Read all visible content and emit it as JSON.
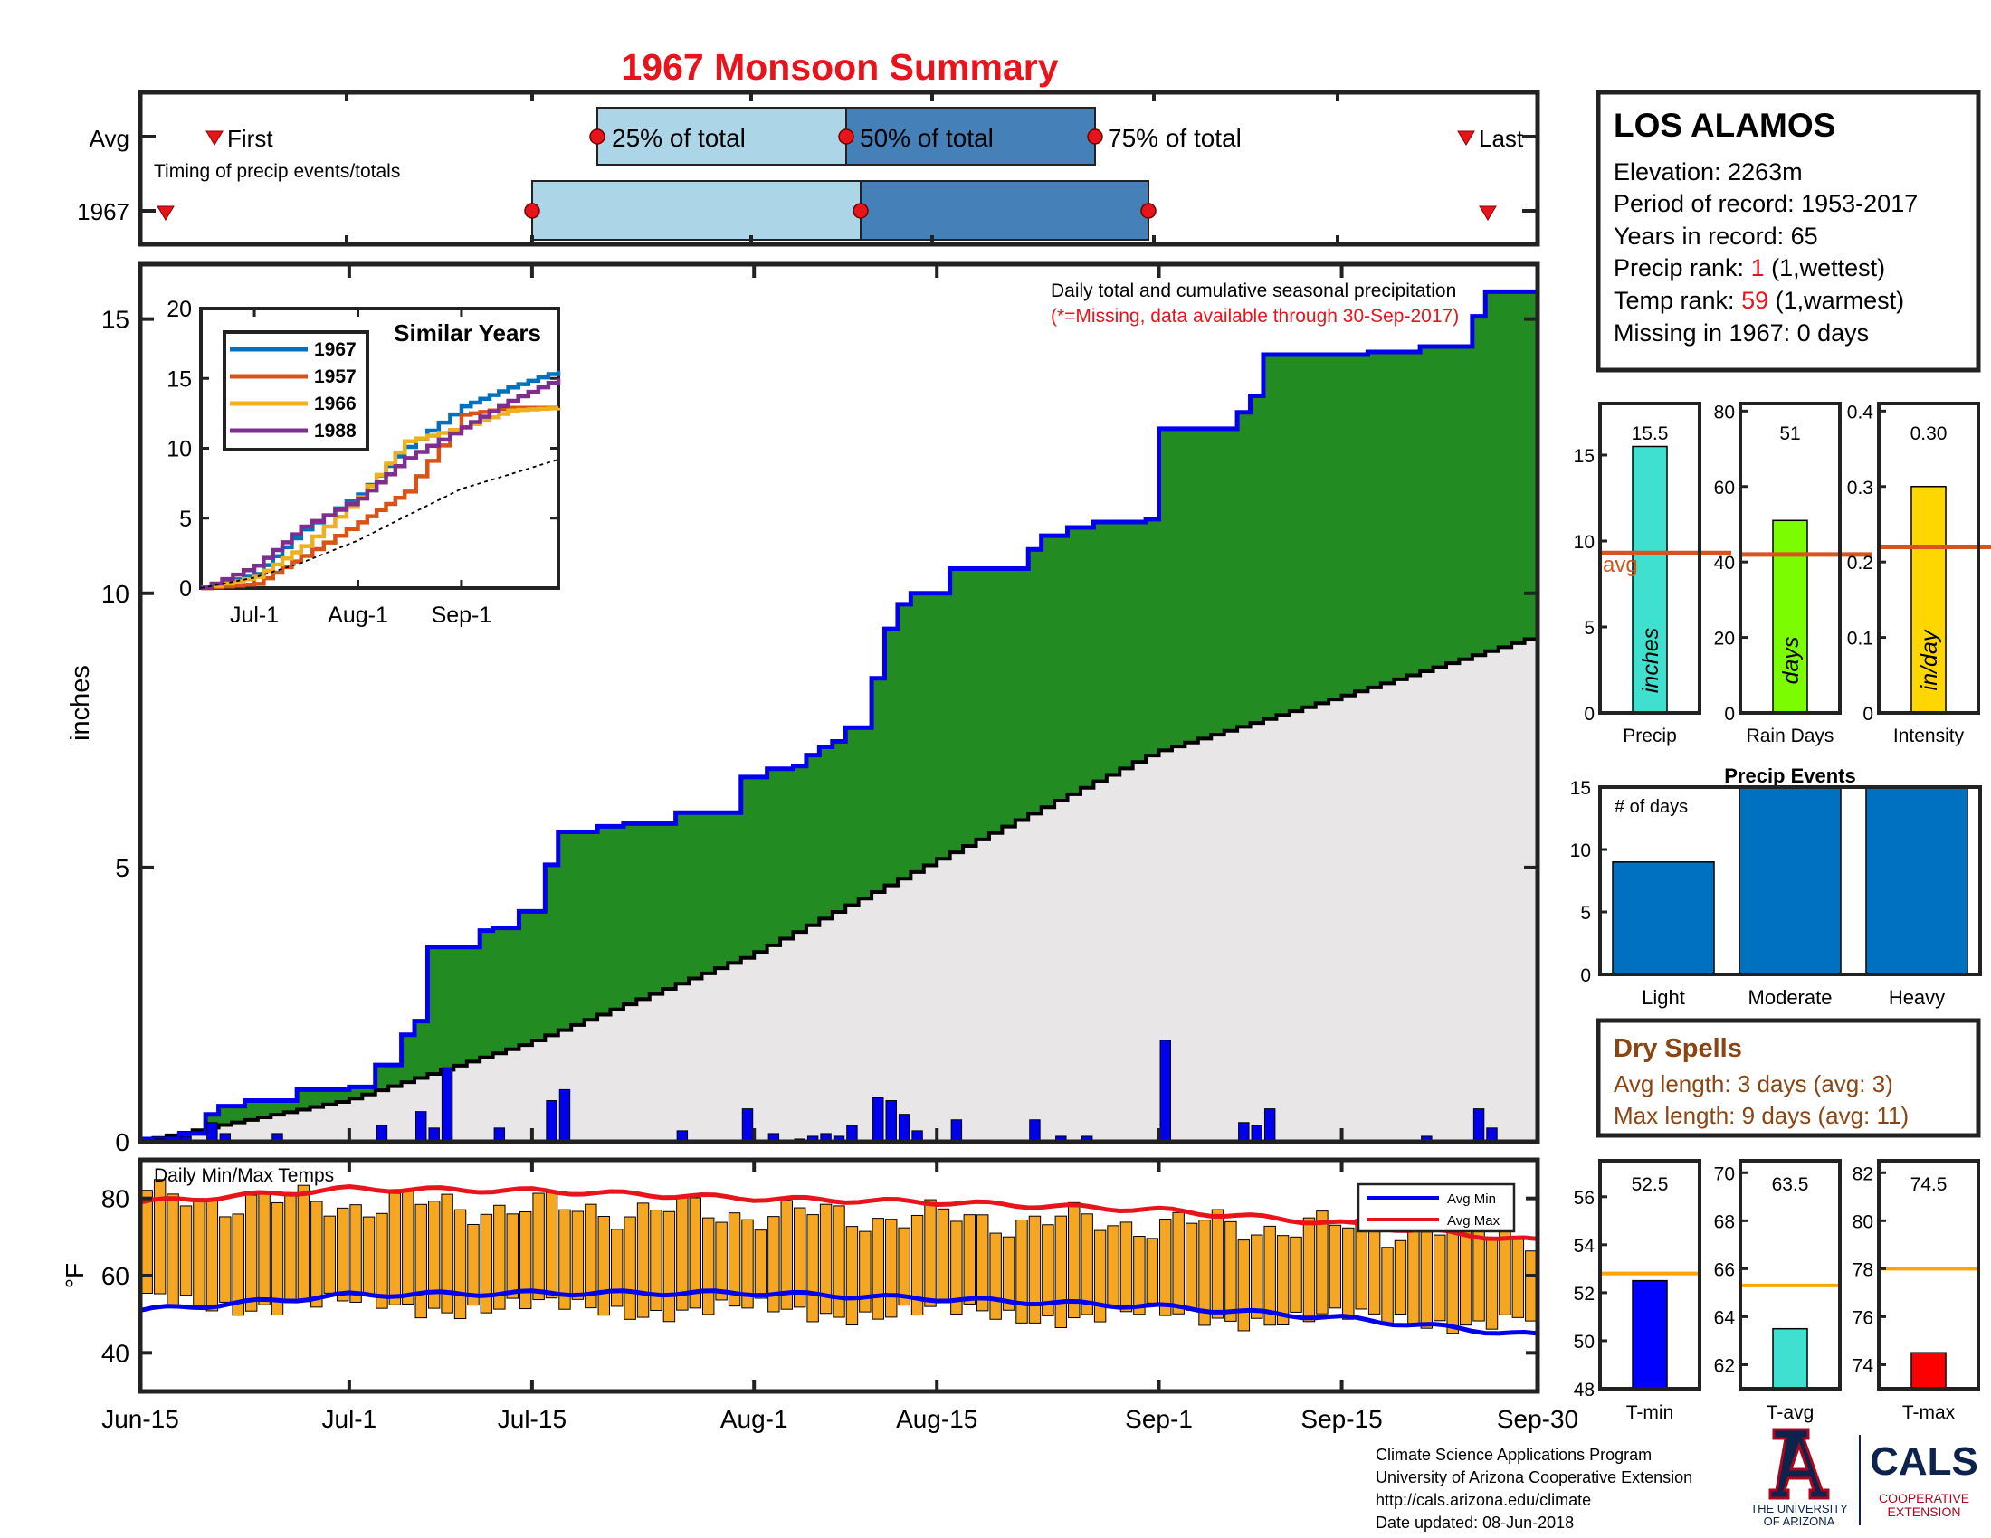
{
  "title": "1967 Monsoon Summary",
  "colors": {
    "title": "#e8141c",
    "frame": "#222222",
    "green": "#228b22",
    "blue_line": "#0000ee",
    "avg_fill": "#e8e6e6",
    "bar_blue": "#0000ee",
    "orange": "#f5a623",
    "red": "#e8141c",
    "light_blue": "#acd6e8",
    "mid_blue": "#4581b8",
    "event_blue": "#0070c0",
    "rank_red": "#e8141c",
    "dry_brown": "#8b4513",
    "avg_line": "#d9531e",
    "t_avg_line": "#ffa500",
    "c1967": "#0072bd",
    "c1957": "#d95319",
    "c1966": "#edb120",
    "c1988": "#7e2f8e",
    "precip_bar": "#40e0d0",
    "days_bar": "#7cfc00",
    "intensity_bar": "#ffd700",
    "tmin_bar": "#0000ff",
    "tavg_bar": "#40e0d0",
    "tmax_bar": "#ff0000"
  },
  "timing": {
    "heading": "Timing of precip events/totals",
    "row_labels": [
      "Avg",
      "1967"
    ],
    "first_label": "First",
    "last_label": "Last",
    "p25_label": "25% of total",
    "p50_label": "50% of total",
    "p75_label": "75% of total",
    "avg": {
      "first": "Jun-19",
      "p25": "Jul-24",
      "p50": "Aug-7",
      "p75": "Aug-21",
      "last": "Sep-27"
    },
    "y1967": {
      "first": "Jun-16",
      "p25": "Jul-15",
      "p50": "Aug-8",
      "p75": "Aug-24",
      "last": "Sep-28"
    }
  },
  "station": {
    "name": "LOS ALAMOS",
    "elevation": "Elevation: 2263m",
    "period": "Period of record: 1953-2017",
    "years": "Years in record: 65",
    "precip_rank_prefix": "Precip rank: ",
    "precip_rank_value": "1",
    "precip_rank_suffix": " (1,wettest)",
    "temp_rank_prefix": "Temp rank: ",
    "temp_rank_value": "59",
    "temp_rank_suffix": " (1,warmest)",
    "missing": "Missing in 1967: 0 days"
  },
  "main_chart": {
    "title_line1": "Daily total and cumulative seasonal precipitation",
    "title_line2": "(*=Missing, data available through 30-Sep-2017)",
    "ylabel": "inches",
    "yticks": [
      "0",
      "5",
      "10",
      "15"
    ],
    "xticks": [
      "Jun-15",
      "Jul-1",
      "Jul-15",
      "Aug-1",
      "Aug-15",
      "Sep-1",
      "Sep-15",
      "Sep-30"
    ]
  },
  "inset": {
    "title": "Similar Years",
    "yticks": [
      "0",
      "5",
      "10",
      "15",
      "20"
    ],
    "xticks": [
      "Jul-1",
      "Aug-1",
      "Sep-1"
    ],
    "legend": [
      "1967",
      "1957",
      "1966",
      "1988"
    ]
  },
  "temp_chart": {
    "title": "Daily Min/Max Temps",
    "ylabel": "°F",
    "yticks": [
      "40",
      "60",
      "80"
    ],
    "legend_min": "Avg Min",
    "legend_max": "Avg Max"
  },
  "summary_bars": {
    "precip": {
      "label": "Precip",
      "value_text": "15.5",
      "unit": "inches",
      "avg_text": "avg",
      "yticks": [
        "0",
        "5",
        "10",
        "15"
      ]
    },
    "days": {
      "label": "Rain Days",
      "value_text": "51",
      "unit": "days",
      "yticks": [
        "0",
        "20",
        "40",
        "60",
        "80"
      ]
    },
    "intensity": {
      "label": "Intensity",
      "value_text": "0.30",
      "unit": "in/day",
      "yticks": [
        "0",
        "0.1",
        "0.2",
        "0.3",
        "0.4"
      ]
    }
  },
  "precip_events": {
    "title": "Precip Events",
    "ylabel": "# of days",
    "yticks": [
      "0",
      "5",
      "10",
      "15"
    ],
    "categories": [
      "Light",
      "Moderate",
      "Heavy"
    ]
  },
  "dry_spells": {
    "title": "Dry Spells",
    "avg_length": "Avg length: 3 days (avg: 3)",
    "max_length": "Max length: 9 days (avg: 11)"
  },
  "temp_bars": {
    "tmin": {
      "label": "T-min",
      "value_text": "52.5",
      "yticks": [
        "48",
        "50",
        "52",
        "54",
        "56"
      ]
    },
    "tavg": {
      "label": "T-avg",
      "value_text": "63.5",
      "yticks": [
        "62",
        "64",
        "66",
        "68",
        "70"
      ]
    },
    "tmax": {
      "label": "T-max",
      "value_text": "74.5",
      "yticks": [
        "74",
        "76",
        "78",
        "80",
        "82"
      ]
    }
  },
  "footer": {
    "line1": "Climate Science Applications Program",
    "line2": "University of Arizona Cooperative Extension",
    "line3": "http://cals.arizona.edu/climate",
    "line4": " Date updated: 08-Jun-2018",
    "logo_ua_line1": "THE UNIVERSITY",
    "logo_ua_line2": "OF ARIZONA",
    "logo_cals": "CALS",
    "logo_coop1": "COOPERATIVE",
    "logo_coop2": "EXTENSION"
  },
  "chart_data": [
    {
      "type": "area",
      "title": "Daily total and cumulative seasonal precipitation",
      "ylabel": "inches",
      "xlim": [
        "Jun-15",
        "Sep-30"
      ],
      "ylim": [
        0,
        16
      ],
      "cumulative_1967": [
        [
          "Jun-15",
          0.05
        ],
        [
          "Jun-18",
          0.15
        ],
        [
          "Jun-20",
          0.5
        ],
        [
          "Jun-21",
          0.65
        ],
        [
          "Jun-23",
          0.75
        ],
        [
          "Jun-27",
          0.95
        ],
        [
          "Jul-1",
          1.0
        ],
        [
          "Jul-3",
          1.4
        ],
        [
          "Jul-5",
          1.95
        ],
        [
          "Jul-6",
          2.2
        ],
        [
          "Jul-7",
          3.55
        ],
        [
          "Jul-11",
          3.85
        ],
        [
          "Jul-12",
          3.9
        ],
        [
          "Jul-14",
          4.2
        ],
        [
          "Jul-16",
          5.05
        ],
        [
          "Jul-17",
          5.65
        ],
        [
          "Jul-20",
          5.75
        ],
        [
          "Jul-22",
          5.8
        ],
        [
          "Jul-26",
          6.0
        ],
        [
          "Jul-31",
          6.65
        ],
        [
          "Aug-2",
          6.8
        ],
        [
          "Aug-4",
          6.85
        ],
        [
          "Aug-5",
          7.05
        ],
        [
          "Aug-6",
          7.2
        ],
        [
          "Aug-7",
          7.3
        ],
        [
          "Aug-8",
          7.55
        ],
        [
          "Aug-10",
          8.45
        ],
        [
          "Aug-11",
          9.35
        ],
        [
          "Aug-12",
          9.8
        ],
        [
          "Aug-13",
          10.0
        ],
        [
          "Aug-16",
          10.45
        ],
        [
          "Aug-22",
          10.8
        ],
        [
          "Aug-23",
          11.05
        ],
        [
          "Aug-25",
          11.2
        ],
        [
          "Aug-27",
          11.3
        ],
        [
          "Aug-31",
          11.35
        ],
        [
          "Sep-1",
          13.0
        ],
        [
          "Sep-7",
          13.3
        ],
        [
          "Sep-8",
          13.6
        ],
        [
          "Sep-9",
          14.35
        ],
        [
          "Sep-17",
          14.4
        ],
        [
          "Sep-21",
          14.5
        ],
        [
          "Sep-25",
          15.05
        ],
        [
          "Sep-26",
          15.5
        ],
        [
          "Sep-30",
          15.55
        ]
      ],
      "cumulative_avg": [
        [
          "Jun-15",
          0.0
        ],
        [
          "Jul-1",
          0.75
        ],
        [
          "Jul-15",
          1.8
        ],
        [
          "Aug-1",
          3.4
        ],
        [
          "Aug-15",
          5.1
        ],
        [
          "Sep-1",
          7.1
        ],
        [
          "Sep-15",
          8.1
        ],
        [
          "Sep-30",
          9.2
        ]
      ],
      "daily_1967": [
        [
          "Jun-16",
          0.05
        ],
        [
          "Jun-18",
          0.1
        ],
        [
          "Jun-20",
          0.35
        ],
        [
          "Jun-21",
          0.15
        ],
        [
          "Jun-25",
          0.15
        ],
        [
          "Jul-3",
          0.3
        ],
        [
          "Jul-6",
          0.55
        ],
        [
          "Jul-7",
          0.25
        ],
        [
          "Jul-8",
          1.35
        ],
        [
          "Jul-12",
          0.25
        ],
        [
          "Jul-16",
          0.75
        ],
        [
          "Jul-17",
          0.95
        ],
        [
          "Jul-26",
          0.2
        ],
        [
          "Jul-31",
          0.6
        ],
        [
          "Aug-2",
          0.15
        ],
        [
          "Aug-4",
          0.05
        ],
        [
          "Aug-5",
          0.1
        ],
        [
          "Aug-6",
          0.15
        ],
        [
          "Aug-7",
          0.1
        ],
        [
          "Aug-8",
          0.3
        ],
        [
          "Aug-10",
          0.8
        ],
        [
          "Aug-11",
          0.75
        ],
        [
          "Aug-12",
          0.5
        ],
        [
          "Aug-13",
          0.2
        ],
        [
          "Aug-16",
          0.4
        ],
        [
          "Aug-22",
          0.4
        ],
        [
          "Aug-24",
          0.1
        ],
        [
          "Aug-26",
          0.1
        ],
        [
          "Sep-1",
          1.85
        ],
        [
          "Sep-7",
          0.35
        ],
        [
          "Sep-8",
          0.3
        ],
        [
          "Sep-9",
          0.6
        ],
        [
          "Sep-21",
          0.1
        ],
        [
          "Sep-25",
          0.6
        ],
        [
          "Sep-26",
          0.25
        ]
      ]
    },
    {
      "type": "line",
      "title": "Similar Years",
      "ylim": [
        0,
        20
      ],
      "series": [
        {
          "name": "1967",
          "points": [
            [
              "Jun-15",
              0.05
            ],
            [
              "Jul-1",
              1.0
            ],
            [
              "Jul-15",
              4.2
            ],
            [
              "Aug-1",
              6.7
            ],
            [
              "Aug-15",
              10.1
            ],
            [
              "Sep-1",
              13.0
            ],
            [
              "Sep-15",
              14.35
            ],
            [
              "Sep-30",
              15.55
            ]
          ]
        },
        {
          "name": "1957",
          "points": [
            [
              "Jun-15",
              0.0
            ],
            [
              "Jul-1",
              0.3
            ],
            [
              "Jul-15",
              2.3
            ],
            [
              "Aug-1",
              4.7
            ],
            [
              "Aug-15",
              6.9
            ],
            [
              "Sep-1",
              12.4
            ],
            [
              "Sep-15",
              12.9
            ],
            [
              "Sep-30",
              12.9
            ]
          ]
        },
        {
          "name": "1966",
          "points": [
            [
              "Jun-15",
              0.0
            ],
            [
              "Jul-1",
              0.8
            ],
            [
              "Jul-15",
              3.0
            ],
            [
              "Aug-1",
              6.5
            ],
            [
              "Aug-15",
              10.5
            ],
            [
              "Sep-1",
              11.5
            ],
            [
              "Sep-15",
              12.7
            ],
            [
              "Sep-30",
              12.9
            ]
          ]
        },
        {
          "name": "1988",
          "points": [
            [
              "Jun-15",
              0.0
            ],
            [
              "Jul-1",
              1.6
            ],
            [
              "Jul-15",
              4.4
            ],
            [
              "Aug-1",
              6.4
            ],
            [
              "Aug-15",
              9.3
            ],
            [
              "Sep-1",
              11.5
            ],
            [
              "Sep-15",
              13.4
            ],
            [
              "Sep-30",
              15.0
            ]
          ]
        },
        {
          "name": "avg",
          "points": [
            [
              "Jun-15",
              0.0
            ],
            [
              "Jul-1",
              0.75
            ],
            [
              "Jul-15",
              1.8
            ],
            [
              "Aug-1",
              3.4
            ],
            [
              "Aug-15",
              5.1
            ],
            [
              "Sep-1",
              7.1
            ],
            [
              "Sep-15",
              8.1
            ],
            [
              "Sep-30",
              9.2
            ]
          ]
        }
      ]
    },
    {
      "type": "bar",
      "title": "Daily Min/Max Temps",
      "ylabel": "°F",
      "ylim": [
        30,
        90
      ],
      "avg_min": [
        [
          "Jun-15",
          51
        ],
        [
          "Jul-1",
          55
        ],
        [
          "Jul-15",
          55.5
        ],
        [
          "Aug-1",
          55.5
        ],
        [
          "Aug-15",
          54
        ],
        [
          "Sep-1",
          52
        ],
        [
          "Sep-15",
          49
        ],
        [
          "Sep-30",
          44.5
        ]
      ],
      "avg_max": [
        [
          "Jun-15",
          79
        ],
        [
          "Jul-1",
          82.5
        ],
        [
          "Jul-15",
          82
        ],
        [
          "Aug-1",
          80
        ],
        [
          "Aug-15",
          79
        ],
        [
          "Sep-1",
          77
        ],
        [
          "Sep-15",
          73.5
        ],
        [
          "Sep-30",
          69
        ]
      ],
      "daily_min_max_1967": "orange floating bars, approx. min 44–56 °F and max 60–86 °F per day Jun-15 to Sep-30"
    },
    {
      "type": "bar",
      "title": "Precip",
      "ylim": [
        0,
        18
      ],
      "values": [
        15.5
      ],
      "avg": 9.3
    },
    {
      "type": "bar",
      "title": "Rain Days",
      "ylim": [
        0,
        82
      ],
      "values": [
        51
      ],
      "avg": 42
    },
    {
      "type": "bar",
      "title": "Intensity",
      "ylim": [
        0,
        0.41
      ],
      "values": [
        0.3
      ],
      "avg": 0.22
    },
    {
      "type": "bar",
      "title": "Precip Events",
      "ylabel": "# of days",
      "ylim": [
        0,
        15
      ],
      "categories": [
        "Light",
        "Moderate",
        "Heavy"
      ],
      "values": [
        9,
        15,
        15
      ]
    },
    {
      "type": "bar",
      "title": "T-min",
      "ylim": [
        48,
        57.5
      ],
      "values": [
        52.5
      ],
      "avg": 52.8
    },
    {
      "type": "bar",
      "title": "T-avg",
      "ylim": [
        61,
        70.5
      ],
      "values": [
        63.5
      ],
      "avg": 65.3
    },
    {
      "type": "bar",
      "title": "T-max",
      "ylim": [
        73,
        82.5
      ],
      "values": [
        74.5
      ],
      "avg": 78
    }
  ]
}
